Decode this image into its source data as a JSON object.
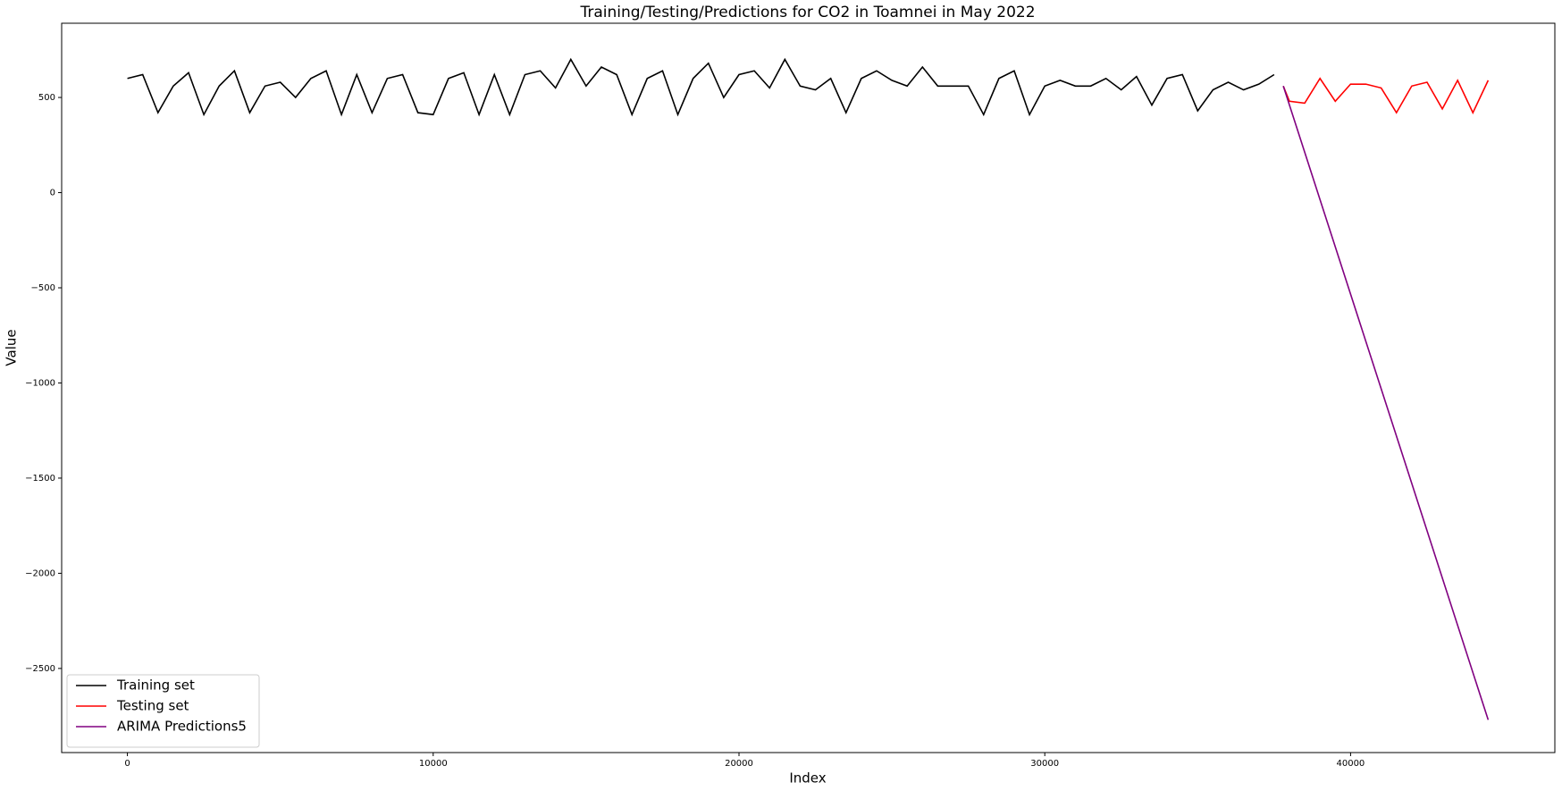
{
  "chart_data": {
    "type": "line",
    "title": "Training/Testing/Predictions for CO2 in Toamnei in May 2022",
    "x_label": "Index",
    "y_label": "Value",
    "xlim": [
      -2150,
      46680
    ],
    "ylim": [
      -2942,
      890
    ],
    "xticks": [
      0,
      10000,
      20000,
      30000,
      40000
    ],
    "yticks": [
      {
        "value": -2500,
        "label": "−2500"
      },
      {
        "value": -2000,
        "label": "−2000"
      },
      {
        "value": -1500,
        "label": "−1500"
      },
      {
        "value": -1000,
        "label": "−1000"
      },
      {
        "value": -500,
        "label": "−500"
      },
      0,
      500
    ],
    "legend": "lower left",
    "series": [
      {
        "name": "Training set",
        "color": "#000000",
        "x": [
          0,
          500,
          1000,
          1500,
          2000,
          2500,
          3000,
          3500,
          4000,
          4500,
          5000,
          5500,
          6000,
          6500,
          7000,
          7500,
          8000,
          8500,
          9000,
          9500,
          10000,
          10500,
          11000,
          11500,
          12000,
          12500,
          13000,
          13500,
          14000,
          14500,
          15000,
          15500,
          16000,
          16500,
          17000,
          17500,
          18000,
          18500,
          19000,
          19500,
          20000,
          20500,
          21000,
          21500,
          22000,
          22500,
          23000,
          23500,
          24000,
          24500,
          25000,
          25500,
          26000,
          26500,
          27000,
          27500,
          28000,
          28500,
          29000,
          29500,
          30000,
          30500,
          31000,
          31500,
          32000,
          32500,
          33000,
          33500,
          34000,
          34500,
          35000,
          35500,
          36000,
          36500,
          37000,
          37500
        ],
        "values": [
          600,
          620,
          420,
          560,
          630,
          410,
          560,
          640,
          420,
          560,
          580,
          500,
          600,
          640,
          410,
          620,
          420,
          600,
          620,
          420,
          410,
          600,
          630,
          410,
          620,
          410,
          620,
          640,
          550,
          700,
          560,
          660,
          620,
          410,
          600,
          640,
          410,
          600,
          680,
          500,
          620,
          640,
          550,
          700,
          560,
          540,
          600,
          420,
          600,
          640,
          590,
          560,
          660,
          560,
          560,
          560,
          410,
          600,
          640,
          410,
          560,
          590,
          560,
          560,
          600,
          540,
          610,
          460,
          600,
          620,
          430,
          540,
          580,
          540,
          570,
          620
        ]
      },
      {
        "name": "Testing set",
        "color": "#ff0000",
        "x": [
          37800,
          38000,
          38500,
          39000,
          39500,
          40000,
          40500,
          41000,
          41500,
          42000,
          42500,
          43000,
          43500,
          44000,
          44500
        ],
        "values": [
          560,
          480,
          470,
          600,
          480,
          570,
          570,
          550,
          420,
          560,
          580,
          440,
          590,
          420,
          590
        ]
      },
      {
        "name": "ARIMA Predictions5",
        "color": "#800080",
        "x": [
          37800,
          44500
        ],
        "values": [
          560,
          -2770
        ]
      }
    ]
  }
}
